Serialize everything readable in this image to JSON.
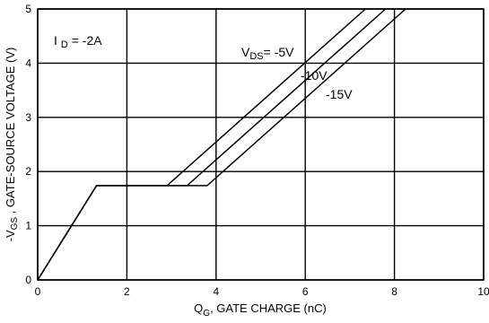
{
  "chart_data": {
    "type": "line",
    "xlabel_main": "Q",
    "xlabel_sub": "G",
    "xlabel_rest": ", GATE CHARGE (nC)",
    "ylabel_prefix": "-V",
    "ylabel_sub": "GS",
    "ylabel_rest": " , GATE-SOURCE VOLTAGE (V)",
    "xlim": [
      0,
      10
    ],
    "ylim": [
      0,
      5
    ],
    "xticks": [
      0,
      2,
      4,
      6,
      8,
      10
    ],
    "yticks": [
      0,
      1,
      2,
      3,
      4,
      5
    ],
    "grid": true,
    "annotations": {
      "id_main": "I",
      "id_sub": "D",
      "id_rest": " = -2A",
      "vds_main": "V",
      "vds_sub": "DS",
      "vds_rest": "= -5V",
      "minus10": "-10V",
      "minus15": "-15V"
    },
    "series": [
      {
        "name": "V_DS = -5V",
        "points": [
          [
            0,
            0
          ],
          [
            1.32,
            1.74
          ],
          [
            2.9,
            1.74
          ],
          [
            7.35,
            5.0
          ]
        ]
      },
      {
        "name": "V_DS = -10V",
        "points": [
          [
            0,
            0
          ],
          [
            1.32,
            1.74
          ],
          [
            3.35,
            1.74
          ],
          [
            7.8,
            5.0
          ]
        ]
      },
      {
        "name": "V_DS = -15V",
        "points": [
          [
            0,
            0
          ],
          [
            1.32,
            1.74
          ],
          [
            3.8,
            1.74
          ],
          [
            8.25,
            5.0
          ]
        ]
      }
    ]
  }
}
